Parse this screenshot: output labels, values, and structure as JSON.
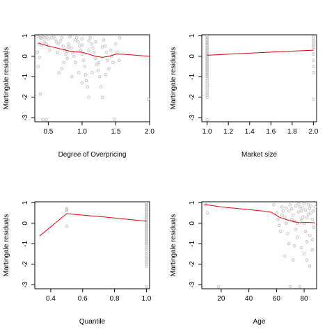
{
  "colors": {
    "points": "#bdbdbd",
    "smooth": "#e00000",
    "axis": "#000000",
    "background": "#ffffff"
  },
  "chart_data": [
    {
      "type": "scatter",
      "xlabel": "Degree of Overpricing",
      "ylabel": "Martingale residuals",
      "xlim": [
        0.3,
        2.0
      ],
      "ylim": [
        -3.2,
        1.05
      ],
      "xticks": [
        0.5,
        1.0,
        1.5,
        2.0
      ],
      "xtick_labels": [
        "0.5",
        "1.0",
        "1.5",
        "2.0"
      ],
      "yticks": [
        1,
        0,
        -1,
        -2,
        -3
      ],
      "ytick_labels": [
        "1",
        "0",
        "-1",
        "-2",
        "-3"
      ],
      "points": [
        [
          0.35,
          0.95
        ],
        [
          0.38,
          0.9
        ],
        [
          0.4,
          0.88
        ],
        [
          0.42,
          0.95
        ],
        [
          0.45,
          0.9
        ],
        [
          0.48,
          0.93
        ],
        [
          0.5,
          0.85
        ],
        [
          0.36,
          0.6
        ],
        [
          0.4,
          0.55
        ],
        [
          0.44,
          0.7
        ],
        [
          0.47,
          0.6
        ],
        [
          0.5,
          0.5
        ],
        [
          0.52,
          0.3
        ],
        [
          0.34,
          0.2
        ],
        [
          0.37,
          -0.05
        ],
        [
          0.35,
          -0.5
        ],
        [
          0.38,
          -1.85
        ],
        [
          0.42,
          -3.1
        ],
        [
          0.47,
          -3.1
        ],
        [
          0.55,
          0.9
        ],
        [
          0.58,
          0.95
        ],
        [
          0.6,
          0.85
        ],
        [
          0.62,
          0.7
        ],
        [
          0.65,
          0.6
        ],
        [
          0.68,
          0.75
        ],
        [
          0.7,
          0.9
        ],
        [
          0.72,
          0.5
        ],
        [
          0.74,
          0.3
        ],
        [
          0.76,
          0.1
        ],
        [
          0.78,
          -0.1
        ],
        [
          0.8,
          0.6
        ],
        [
          0.82,
          0.95
        ],
        [
          0.84,
          0.4
        ],
        [
          0.86,
          0.2
        ],
        [
          0.88,
          0.0
        ],
        [
          0.9,
          -0.3
        ],
        [
          0.92,
          0.9
        ],
        [
          0.94,
          0.7
        ],
        [
          0.96,
          0.5
        ],
        [
          0.98,
          0.3
        ],
        [
          1.0,
          0.1
        ],
        [
          1.02,
          -0.2
        ],
        [
          1.04,
          -0.5
        ],
        [
          1.06,
          -1.2
        ],
        [
          1.08,
          -1.5
        ],
        [
          1.1,
          -2.0
        ],
        [
          1.12,
          0.9
        ],
        [
          1.14,
          0.6
        ],
        [
          1.16,
          0.4
        ],
        [
          1.18,
          0.2
        ],
        [
          1.2,
          -0.1
        ],
        [
          1.22,
          -0.4
        ],
        [
          1.24,
          -0.7
        ],
        [
          1.26,
          -1.0
        ],
        [
          1.28,
          -1.5
        ],
        [
          1.3,
          -2.0
        ],
        [
          1.32,
          0.8
        ],
        [
          1.34,
          0.5
        ],
        [
          1.36,
          0.2
        ],
        [
          1.38,
          -0.2
        ],
        [
          1.4,
          -0.6
        ],
        [
          1.42,
          0.3
        ],
        [
          1.44,
          0.0
        ],
        [
          1.46,
          -0.3
        ],
        [
          1.5,
          0.6
        ],
        [
          1.52,
          0.2
        ],
        [
          1.55,
          -0.2
        ],
        [
          1.56,
          0.9
        ],
        [
          1.48,
          -3.1
        ],
        [
          1.98,
          -2.1
        ],
        [
          0.66,
          -0.8
        ],
        [
          0.7,
          -0.6
        ],
        [
          0.73,
          -0.3
        ],
        [
          0.85,
          -1.0
        ],
        [
          0.95,
          -0.8
        ],
        [
          1.0,
          -1.3
        ],
        [
          1.05,
          -0.9
        ],
        [
          1.15,
          -0.8
        ],
        [
          1.25,
          -0.3
        ],
        [
          1.35,
          -0.9
        ],
        [
          0.9,
          0.8
        ],
        [
          1.0,
          0.85
        ],
        [
          1.1,
          0.75
        ],
        [
          1.2,
          0.7
        ],
        [
          0.8,
          0.45
        ],
        [
          1.0,
          0.55
        ],
        [
          1.1,
          0.3
        ],
        [
          1.3,
          0.45
        ],
        [
          0.64,
          0.2
        ],
        [
          0.78,
          0.25
        ]
      ],
      "smooth": [
        [
          0.35,
          0.65
        ],
        [
          0.5,
          0.5
        ],
        [
          0.7,
          0.35
        ],
        [
          0.85,
          0.22
        ],
        [
          1.0,
          0.2
        ],
        [
          1.1,
          0.1
        ],
        [
          1.2,
          0.0
        ],
        [
          1.3,
          -0.05
        ],
        [
          1.4,
          0.0
        ],
        [
          1.5,
          0.1
        ],
        [
          1.6,
          0.1
        ],
        [
          1.8,
          0.05
        ],
        [
          2.0,
          0.0
        ]
      ]
    },
    {
      "type": "scatter",
      "xlabel": "Market size",
      "ylabel": "Martingale residuals",
      "xlim": [
        0.95,
        2.03
      ],
      "ylim": [
        -3.2,
        1.05
      ],
      "xticks": [
        1.0,
        1.2,
        1.4,
        1.6,
        1.8,
        2.0
      ],
      "xtick_labels": [
        "1.0",
        "1.2",
        "1.4",
        "1.6",
        "1.8",
        "2.0"
      ],
      "yticks": [
        1,
        0,
        -1,
        -2,
        -3
      ],
      "ytick_labels": [
        "1",
        "0",
        "-1",
        "-2",
        "-3"
      ],
      "points": [
        [
          1.0,
          0.98
        ],
        [
          1.0,
          0.92
        ],
        [
          1.0,
          0.86
        ],
        [
          1.0,
          0.8
        ],
        [
          1.0,
          0.74
        ],
        [
          1.0,
          0.68
        ],
        [
          1.0,
          0.62
        ],
        [
          1.0,
          0.56
        ],
        [
          1.0,
          0.5
        ],
        [
          1.0,
          0.44
        ],
        [
          1.0,
          0.38
        ],
        [
          1.0,
          0.32
        ],
        [
          1.0,
          0.26
        ],
        [
          1.0,
          0.2
        ],
        [
          1.0,
          0.14
        ],
        [
          1.0,
          0.08
        ],
        [
          1.0,
          0.02
        ],
        [
          1.0,
          -0.04
        ],
        [
          1.0,
          -0.1
        ],
        [
          1.0,
          -0.16
        ],
        [
          1.0,
          -0.22
        ],
        [
          1.0,
          -0.28
        ],
        [
          1.0,
          -0.34
        ],
        [
          1.0,
          -0.4
        ],
        [
          1.0,
          -0.46
        ],
        [
          1.0,
          -0.52
        ],
        [
          1.0,
          -0.58
        ],
        [
          1.0,
          -0.64
        ],
        [
          1.0,
          -0.7
        ],
        [
          1.0,
          -0.76
        ],
        [
          1.0,
          -0.82
        ],
        [
          1.0,
          -0.88
        ],
        [
          1.0,
          -0.94
        ],
        [
          1.0,
          -1.0
        ],
        [
          1.0,
          -1.1
        ],
        [
          1.0,
          -1.2
        ],
        [
          1.0,
          -1.3
        ],
        [
          1.0,
          -1.4
        ],
        [
          1.0,
          -1.5
        ],
        [
          1.0,
          -1.6
        ],
        [
          1.0,
          -1.7
        ],
        [
          1.0,
          -1.8
        ],
        [
          1.0,
          -1.9
        ],
        [
          1.0,
          -2.0
        ],
        [
          1.0,
          -3.1
        ],
        [
          2.0,
          0.95
        ],
        [
          2.0,
          0.85
        ],
        [
          2.0,
          0.75
        ],
        [
          2.0,
          0.65
        ],
        [
          2.0,
          0.55
        ],
        [
          2.0,
          0.45
        ],
        [
          2.0,
          0.35
        ],
        [
          2.0,
          0.1
        ],
        [
          2.0,
          -0.2
        ],
        [
          2.0,
          -0.5
        ],
        [
          2.0,
          -0.8
        ],
        [
          2.0,
          -2.1
        ]
      ],
      "smooth": [
        [
          1.0,
          0.05
        ],
        [
          1.5,
          0.18
        ],
        [
          2.0,
          0.3
        ]
      ]
    },
    {
      "type": "scatter",
      "xlabel": "Quantile",
      "ylabel": "Martingale residuals",
      "xlim": [
        0.3,
        1.02
      ],
      "ylim": [
        -3.2,
        1.05
      ],
      "xticks": [
        0.4,
        0.6,
        0.8,
        1.0
      ],
      "xtick_labels": [
        "0.4",
        "0.6",
        "0.8",
        "1.0"
      ],
      "yticks": [
        1,
        0,
        -1,
        -2,
        -3
      ],
      "ytick_labels": [
        "1",
        "0",
        "-1",
        "-2",
        "-3"
      ],
      "points": [
        [
          0.5,
          0.72
        ],
        [
          0.5,
          0.66
        ],
        [
          0.5,
          0.6
        ],
        [
          0.5,
          -0.15
        ],
        [
          1.0,
          0.98
        ],
        [
          1.0,
          0.92
        ],
        [
          1.0,
          0.86
        ],
        [
          1.0,
          0.8
        ],
        [
          1.0,
          0.74
        ],
        [
          1.0,
          0.68
        ],
        [
          1.0,
          0.62
        ],
        [
          1.0,
          0.56
        ],
        [
          1.0,
          0.5
        ],
        [
          1.0,
          0.44
        ],
        [
          1.0,
          0.38
        ],
        [
          1.0,
          0.32
        ],
        [
          1.0,
          0.26
        ],
        [
          1.0,
          0.2
        ],
        [
          1.0,
          0.14
        ],
        [
          1.0,
          0.08
        ],
        [
          1.0,
          0.02
        ],
        [
          1.0,
          -0.04
        ],
        [
          1.0,
          -0.1
        ],
        [
          1.0,
          -0.16
        ],
        [
          1.0,
          -0.22
        ],
        [
          1.0,
          -0.28
        ],
        [
          1.0,
          -0.34
        ],
        [
          1.0,
          -0.4
        ],
        [
          1.0,
          -0.46
        ],
        [
          1.0,
          -0.52
        ],
        [
          1.0,
          -0.58
        ],
        [
          1.0,
          -0.64
        ],
        [
          1.0,
          -0.7
        ],
        [
          1.0,
          -0.76
        ],
        [
          1.0,
          -0.82
        ],
        [
          1.0,
          -0.88
        ],
        [
          1.0,
          -0.94
        ],
        [
          1.0,
          -1.0
        ],
        [
          1.0,
          -1.1
        ],
        [
          1.0,
          -1.2
        ],
        [
          1.0,
          -1.3
        ],
        [
          1.0,
          -1.4
        ],
        [
          1.0,
          -1.5
        ],
        [
          1.0,
          -1.6
        ],
        [
          1.0,
          -1.7
        ],
        [
          1.0,
          -1.8
        ],
        [
          1.0,
          -1.9
        ],
        [
          1.0,
          -2.0
        ],
        [
          1.0,
          -2.1
        ],
        [
          1.0,
          -3.1
        ]
      ],
      "smooth": [
        [
          0.33,
          -0.62
        ],
        [
          0.5,
          0.47
        ],
        [
          0.75,
          0.3
        ],
        [
          1.0,
          0.1
        ]
      ]
    },
    {
      "type": "scatter",
      "xlabel": "Age",
      "ylabel": "Martingale residuals",
      "xlim": [
        6,
        89
      ],
      "ylim": [
        -3.2,
        1.05
      ],
      "xticks": [
        20,
        40,
        60,
        80
      ],
      "xtick_labels": [
        "20",
        "40",
        "60",
        "80"
      ],
      "yticks": [
        1,
        0,
        -1,
        -2,
        -3
      ],
      "ytick_labels": [
        "1",
        "0",
        "-1",
        "-2",
        "-3"
      ],
      "points": [
        [
          9,
          0.9
        ],
        [
          10,
          0.5
        ],
        [
          18,
          -3.1
        ],
        [
          58,
          0.9
        ],
        [
          60,
          0.5
        ],
        [
          61,
          0.2
        ],
        [
          62,
          -0.1
        ],
        [
          63,
          -0.4
        ],
        [
          64,
          0.8
        ],
        [
          65,
          0.6
        ],
        [
          66,
          0.3
        ],
        [
          67,
          0.0
        ],
        [
          68,
          -0.5
        ],
        [
          69,
          -1.0
        ],
        [
          70,
          0.9
        ],
        [
          71,
          0.7
        ],
        [
          72,
          0.4
        ],
        [
          73,
          0.1
        ],
        [
          74,
          -0.3
        ],
        [
          75,
          -0.7
        ],
        [
          76,
          0.95
        ],
        [
          77,
          0.8
        ],
        [
          78,
          0.6
        ],
        [
          79,
          0.3
        ],
        [
          80,
          0.0
        ],
        [
          81,
          -0.4
        ],
        [
          82,
          -0.9
        ],
        [
          83,
          0.9
        ],
        [
          84,
          0.7
        ],
        [
          85,
          0.5
        ],
        [
          86,
          0.2
        ],
        [
          87,
          -0.2
        ],
        [
          78,
          -1.2
        ],
        [
          80,
          -1.5
        ],
        [
          82,
          -1.8
        ],
        [
          84,
          -2.1
        ],
        [
          86,
          -1.3
        ],
        [
          88,
          0.8
        ],
        [
          70,
          -3.1
        ],
        [
          77,
          -3.1
        ],
        [
          66,
          -1.6
        ],
        [
          72,
          -1.8
        ],
        [
          74,
          0.85
        ],
        [
          76,
          0.55
        ],
        [
          79,
          0.75
        ],
        [
          81,
          0.65
        ],
        [
          83,
          0.45
        ],
        [
          85,
          0.85
        ],
        [
          87,
          0.6
        ],
        [
          71,
          0.2
        ],
        [
          69,
          0.6
        ],
        [
          67,
          0.75
        ],
        [
          73,
          -1.1
        ],
        [
          75,
          0.0
        ],
        [
          82,
          0.3
        ],
        [
          84,
          -0.6
        ],
        [
          86,
          -0.8
        ],
        [
          80,
          0.95
        ],
        [
          78,
          0.15
        ],
        [
          64,
          0.4
        ]
      ],
      "smooth": [
        [
          8,
          0.92
        ],
        [
          20,
          0.8
        ],
        [
          35,
          0.7
        ],
        [
          50,
          0.6
        ],
        [
          56,
          0.55
        ],
        [
          62,
          0.3
        ],
        [
          70,
          0.12
        ],
        [
          76,
          0.03
        ],
        [
          82,
          0.05
        ],
        [
          88,
          0.02
        ]
      ]
    }
  ]
}
